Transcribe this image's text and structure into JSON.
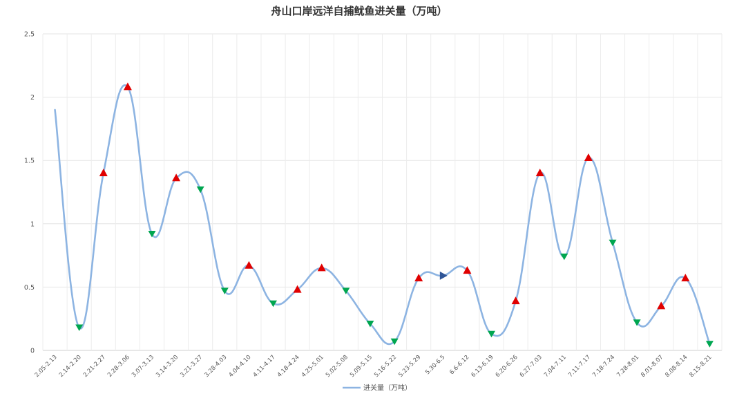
{
  "chart_data": {
    "type": "line",
    "title": "舟山口岸远洋自捕鱿鱼进关量（万吨）",
    "xlabel": "",
    "ylabel": "",
    "ylim": [
      0,
      2.5
    ],
    "yticks": [
      "0",
      "0.5",
      "1",
      "1.5",
      "2",
      "2.5"
    ],
    "grid": true,
    "smooth": true,
    "legend_position": "bottom",
    "categories": [
      "2.05-2.13",
      "2.14-2.20",
      "2.21-2.27",
      "2.28-3.06",
      "3.07-3.13",
      "3.14-3.20",
      "3.21-3.27",
      "3.28-4.03",
      "4.04-4.10",
      "4.11-4.17",
      "4.18-4.24",
      "4.25-5.01",
      "5.02-5.08",
      "5.09-5.15",
      "5.16-5.22",
      "5.23-5.29",
      "5.30-6.5",
      "6.6-6.12",
      "6.13-6.19",
      "6.20-6.26",
      "6.27-7.03",
      "7.04-7.11",
      "7.11-7.17",
      "7.18-7.24",
      "7.28-8.01",
      "8.01-8.07",
      "8.08-8.14",
      "8.15-8.21"
    ],
    "series": [
      {
        "name": "进关量（万吨）",
        "color": "#8db4e2",
        "values": [
          1.9,
          0.18,
          1.4,
          2.08,
          0.92,
          1.36,
          1.27,
          0.47,
          0.67,
          0.37,
          0.48,
          0.65,
          0.47,
          0.21,
          0.07,
          0.57,
          0.59,
          0.63,
          0.13,
          0.39,
          1.4,
          0.74,
          1.52,
          0.85,
          0.22,
          0.35,
          0.57,
          0.05
        ],
        "markers": [
          "none",
          "down",
          "up",
          "up",
          "down",
          "up",
          "down",
          "down",
          "up",
          "down",
          "up",
          "up",
          "down",
          "down",
          "down",
          "up",
          "flat",
          "up",
          "down",
          "up",
          "up",
          "down",
          "up",
          "down",
          "down",
          "up",
          "up",
          "down"
        ]
      }
    ],
    "marker_colors": {
      "up": "#e00000",
      "down": "#00a650",
      "flat": "#2f5597"
    }
  }
}
